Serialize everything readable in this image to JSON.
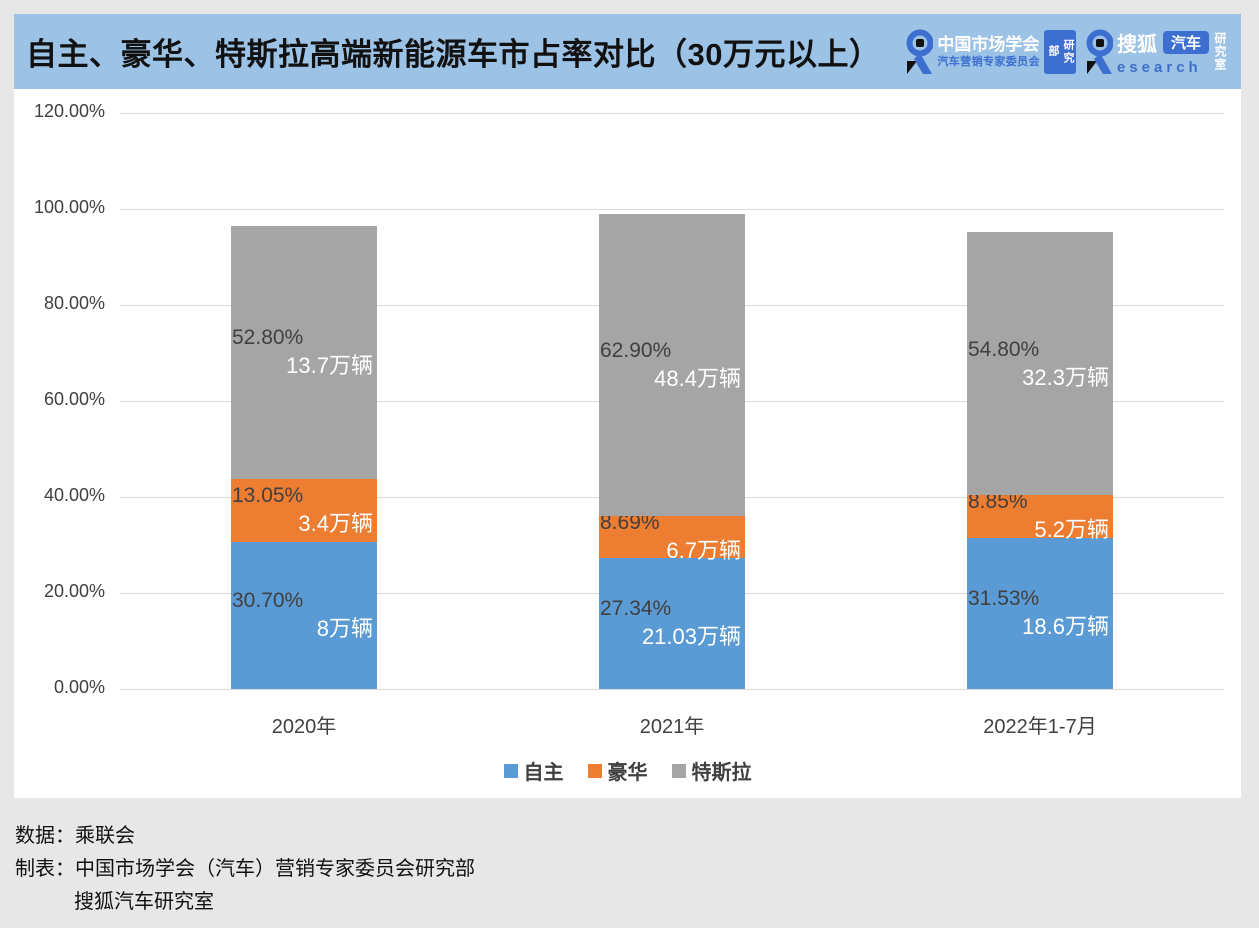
{
  "colors": {
    "page_bg": "#e7e7e7",
    "panel_bg": "#ffffff",
    "titlebar_bg": "#9cc2e5",
    "logo_blue": "#3d6fd0",
    "grid": "#d9d9d9",
    "axis_text": "#404040",
    "pct_label": "#404040",
    "volume_label": "#ffffff"
  },
  "header": {
    "title": "自主、豪华、特斯拉高端新能源车市占率对比（30万元以上）",
    "logos": {
      "cmas": {
        "line1": "中国市场学会",
        "line2": "汽车营销专家委员会",
        "badge": "研究部"
      },
      "sohu": {
        "brand": "搜狐",
        "badge": "汽车",
        "sub": "esearch",
        "vertical": "研究室"
      }
    }
  },
  "chart_data": {
    "type": "bar",
    "stacked": true,
    "title": "自主、豪华、特斯拉高端新能源车市占率对比（30万元以上）",
    "categories": [
      "2020年",
      "2021年",
      "2022年1-7月"
    ],
    "series": [
      {
        "name": "自主",
        "color": "#5b9bd5",
        "values": [
          30.7,
          27.34,
          31.53
        ],
        "pct_labels": [
          "30.70%",
          "27.34%",
          "31.53%"
        ],
        "volume_labels": [
          "8万辆",
          "21.03万辆",
          "18.6万辆"
        ]
      },
      {
        "name": "豪华",
        "color": "#ed7d31",
        "values": [
          13.05,
          8.69,
          8.85
        ],
        "pct_labels": [
          "13.05%",
          "8.69%",
          "8.85%"
        ],
        "volume_labels": [
          "3.4万辆",
          "6.7万辆",
          "5.2万辆"
        ]
      },
      {
        "name": "特斯拉",
        "color": "#a5a5a5",
        "values": [
          52.8,
          62.9,
          54.8
        ],
        "pct_labels": [
          "52.80%",
          "62.90%",
          "54.80%"
        ],
        "volume_labels": [
          "13.7万辆",
          "48.4万辆",
          "32.3万辆"
        ]
      }
    ],
    "xlabel": "",
    "ylabel": "",
    "ylim": [
      0,
      120
    ],
    "ytick_step": 20,
    "yticks": [
      "120.00%",
      "100.00%",
      "80.00%",
      "60.00%",
      "40.00%",
      "20.00%",
      "0.00%"
    ],
    "grid": true,
    "legend_position": "bottom",
    "legend": [
      "自主",
      "豪华",
      "特斯拉"
    ]
  },
  "footer": {
    "source": "数据：乘联会",
    "maker": "制表：中国市场学会（汽车）营销专家委员会研究部",
    "maker2": "搜狐汽车研究室"
  }
}
